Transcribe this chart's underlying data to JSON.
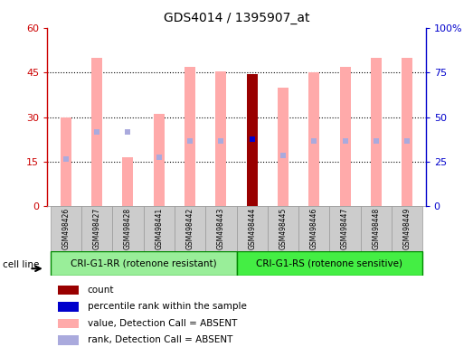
{
  "title": "GDS4014 / 1395907_at",
  "samples": [
    "GSM498426",
    "GSM498427",
    "GSM498428",
    "GSM498441",
    "GSM498442",
    "GSM498443",
    "GSM498444",
    "GSM498445",
    "GSM498446",
    "GSM498447",
    "GSM498448",
    "GSM498449"
  ],
  "group1_count": 6,
  "group2_count": 6,
  "group1_label": "CRI-G1-RR (rotenone resistant)",
  "group2_label": "CRI-G1-RS (rotenone sensitive)",
  "cell_line_label": "cell line",
  "value_bars": [
    30,
    50,
    16.5,
    31,
    47,
    45.5,
    44.5,
    40,
    45,
    47,
    50,
    50
  ],
  "rank_bars": [
    16,
    25,
    25,
    16.5,
    22,
    22,
    22.5,
    17,
    22,
    22,
    22,
    22
  ],
  "count_bar_index": 6,
  "count_bar_value": 44.5,
  "percentile_rank_value": 22.5,
  "ylim_left": [
    0,
    60
  ],
  "ylim_right": [
    0,
    100
  ],
  "yticks_left": [
    0,
    15,
    30,
    45,
    60
  ],
  "yticks_right": [
    0,
    25,
    50,
    75,
    100
  ],
  "color_value_bar": "#ffaaaa",
  "color_rank_marker": "#aaaadd",
  "color_count_bar": "#990000",
  "color_percentile_dot": "#0000cc",
  "color_left_axis": "#cc0000",
  "color_right_axis": "#0000cc",
  "color_group1_bg": "#99ee99",
  "color_group2_bg": "#44ee44",
  "color_sample_bg": "#cccccc",
  "bar_width": 0.35,
  "legend_items": [
    {
      "label": "count",
      "color": "#990000"
    },
    {
      "label": "percentile rank within the sample",
      "color": "#0000cc"
    },
    {
      "label": "value, Detection Call = ABSENT",
      "color": "#ffaaaa"
    },
    {
      "label": "rank, Detection Call = ABSENT",
      "color": "#aaaadd"
    }
  ]
}
